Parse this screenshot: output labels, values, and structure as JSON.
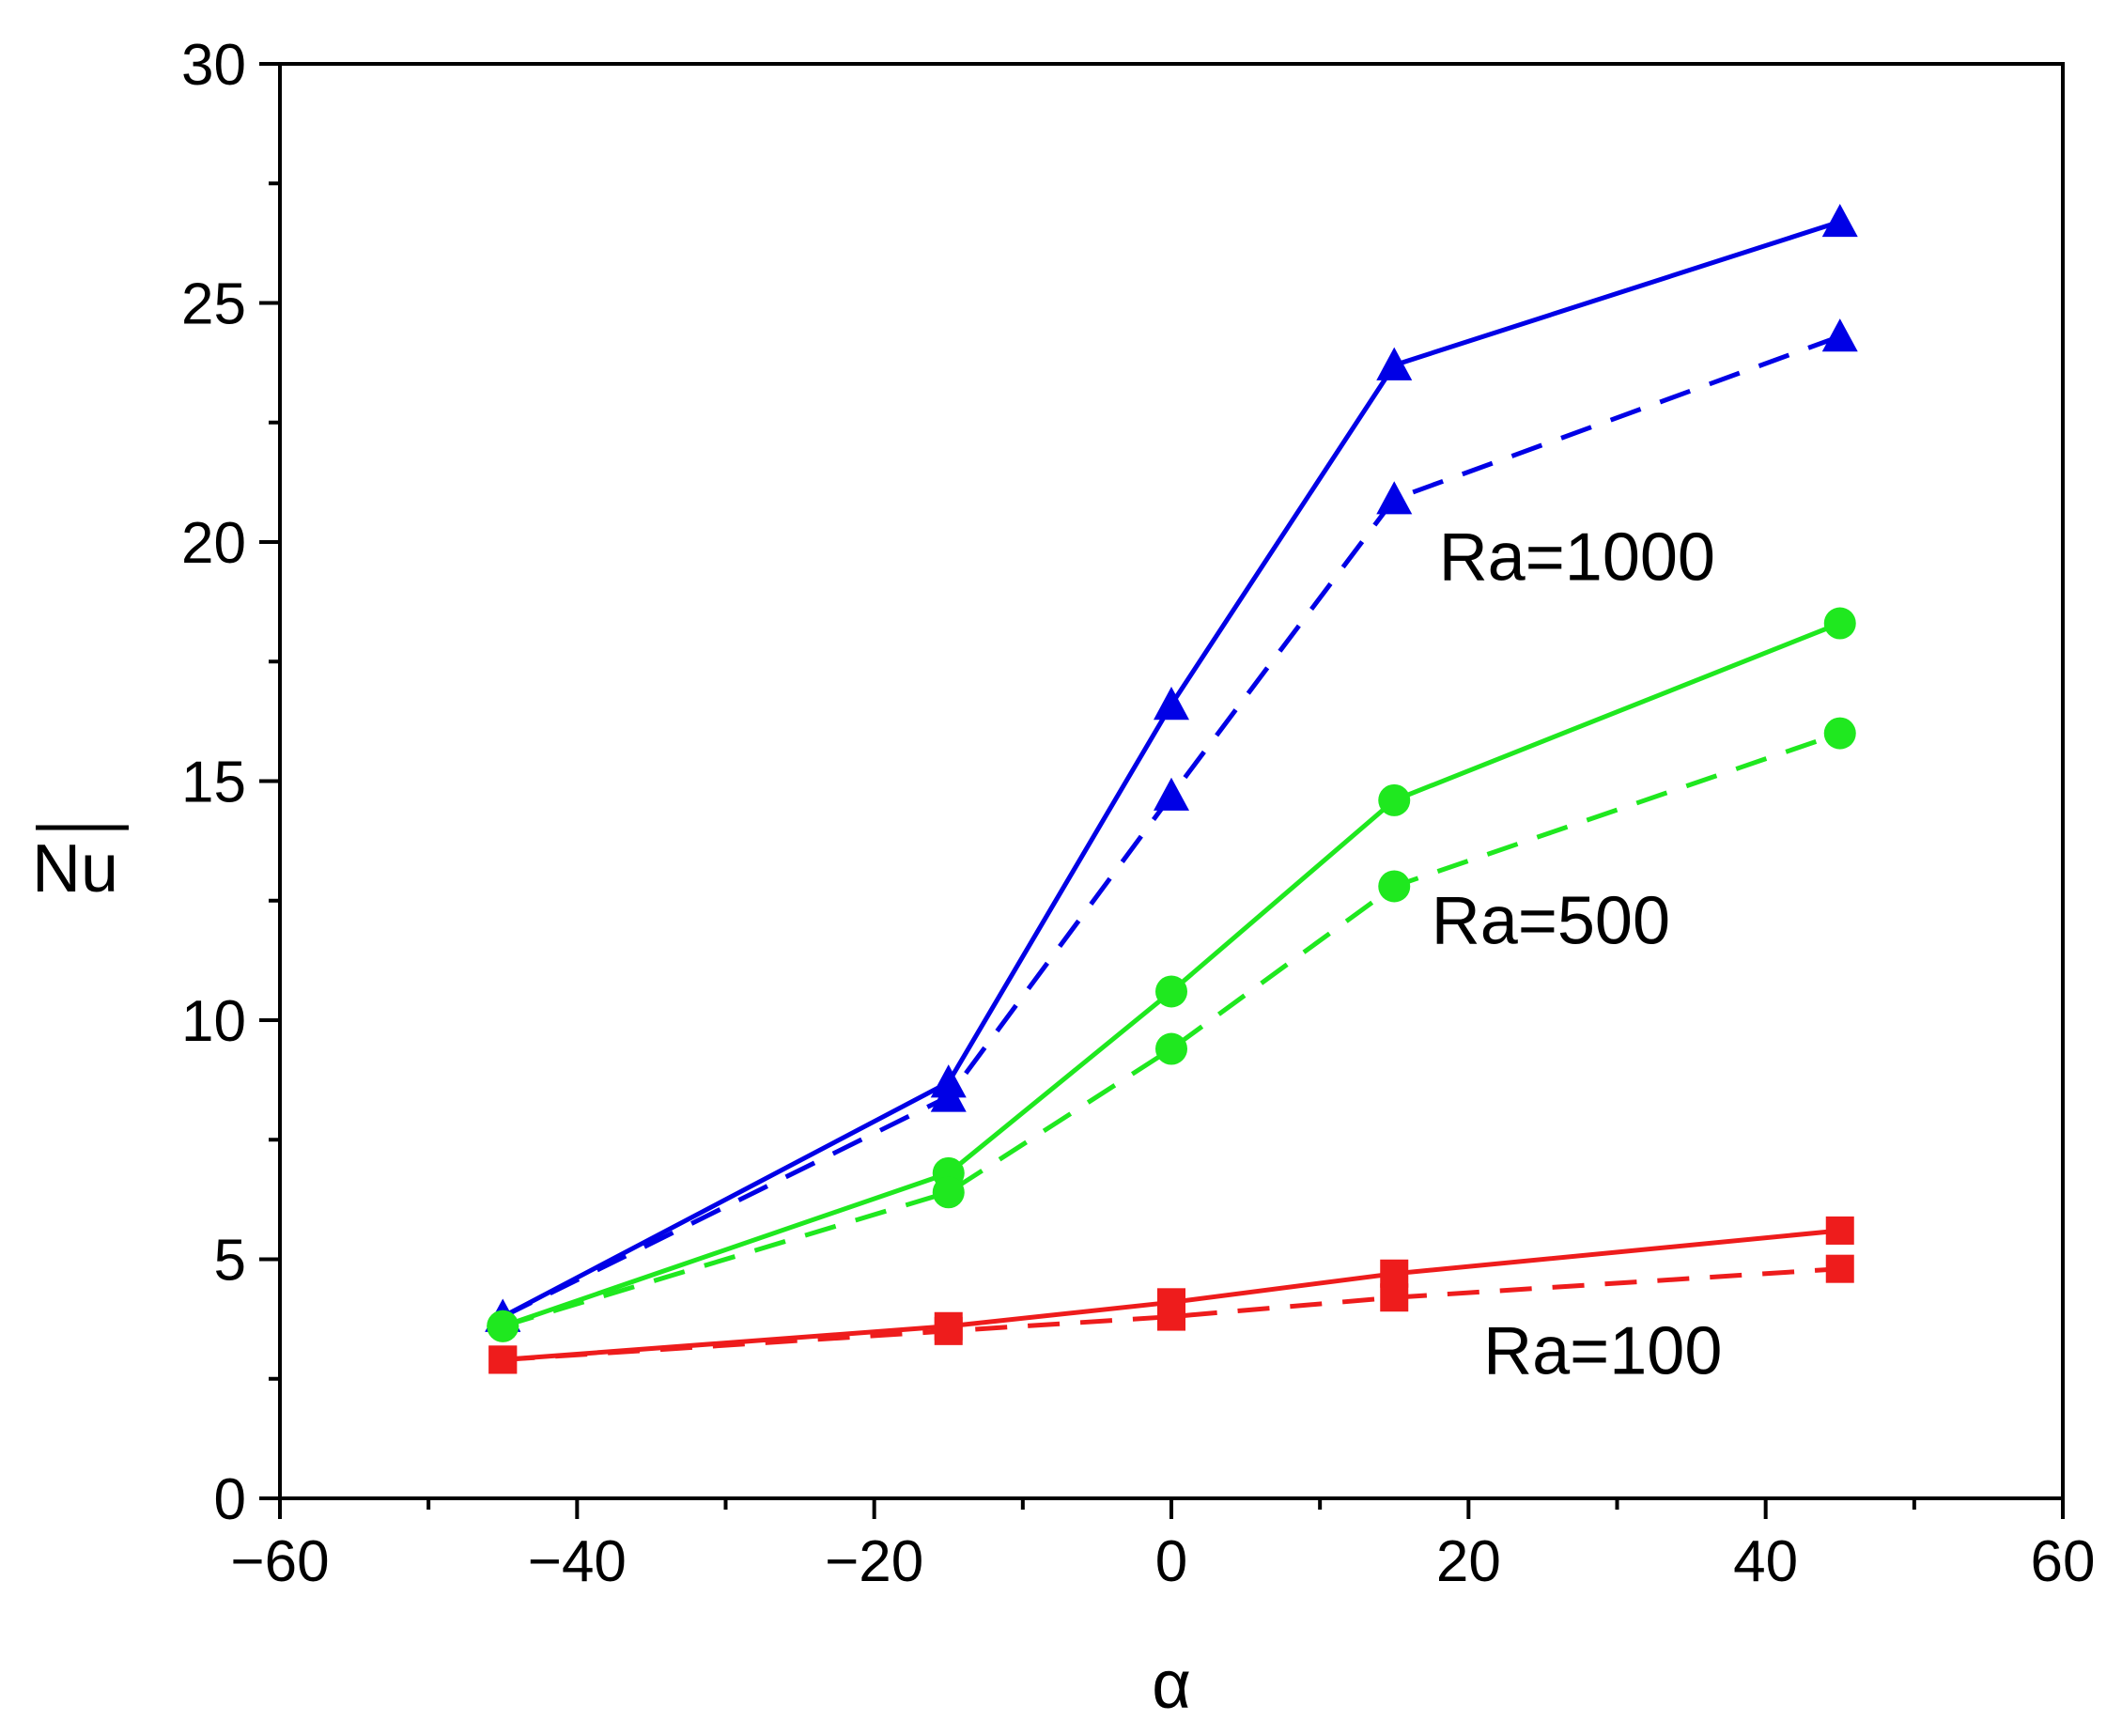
{
  "chart_data": {
    "type": "line",
    "title": "",
    "xlabel": "α",
    "ylabel": "Nu",
    "ylabel_overbar": true,
    "xlim": [
      -60,
      60
    ],
    "ylim": [
      0,
      30
    ],
    "xticks": [
      -60,
      -40,
      -20,
      0,
      20,
      40,
      60
    ],
    "yticks": [
      0,
      5,
      10,
      15,
      20,
      25,
      30
    ],
    "xtick_labels": [
      "−60",
      "−40",
      "−20",
      "0",
      "20",
      "40",
      "60"
    ],
    "ytick_labels": [
      "0",
      "5",
      "10",
      "15",
      "20",
      "25",
      "30"
    ],
    "x_minor_step": 10,
    "y_minor_step": 2.5,
    "grid": false,
    "legend": "none",
    "x": [
      -45,
      -15,
      0,
      15,
      45
    ],
    "series": [
      {
        "name": "Ra=1000 solid",
        "group": "Ra=1000",
        "style": "solid",
        "marker": "triangle",
        "color": "#0000e6",
        "values": [
          3.8,
          8.7,
          16.6,
          23.7,
          26.7
        ]
      },
      {
        "name": "Ra=1000 dashed",
        "group": "Ra=1000",
        "style": "dashed",
        "marker": "triangle",
        "color": "#0000e6",
        "values": [
          3.8,
          8.4,
          14.7,
          20.9,
          24.3
        ]
      },
      {
        "name": "Ra=500 solid",
        "group": "Ra=500",
        "style": "solid",
        "marker": "circle",
        "color": "#1fe81f",
        "values": [
          3.6,
          6.8,
          10.6,
          14.6,
          18.3
        ]
      },
      {
        "name": "Ra=500 dashed",
        "group": "Ra=500",
        "style": "dashed",
        "marker": "circle",
        "color": "#1fe81f",
        "values": [
          3.6,
          6.4,
          9.4,
          12.8,
          16.0
        ]
      },
      {
        "name": "Ra=100 solid",
        "group": "Ra=100",
        "style": "solid",
        "marker": "square",
        "color": "#ee1c1c",
        "values": [
          2.9,
          3.6,
          4.1,
          4.7,
          5.6
        ]
      },
      {
        "name": "Ra=100 dashed",
        "group": "Ra=100",
        "style": "dashed",
        "marker": "square",
        "color": "#ee1c1c",
        "values": [
          2.9,
          3.5,
          3.8,
          4.2,
          4.8
        ]
      }
    ],
    "annotations": [
      {
        "text": "Ra=1000",
        "x": 18,
        "y": 19.2
      },
      {
        "text": "Ra=500",
        "x": 17.5,
        "y": 11.6
      },
      {
        "text": "Ra=100",
        "x": 21,
        "y": 2.6
      }
    ]
  }
}
